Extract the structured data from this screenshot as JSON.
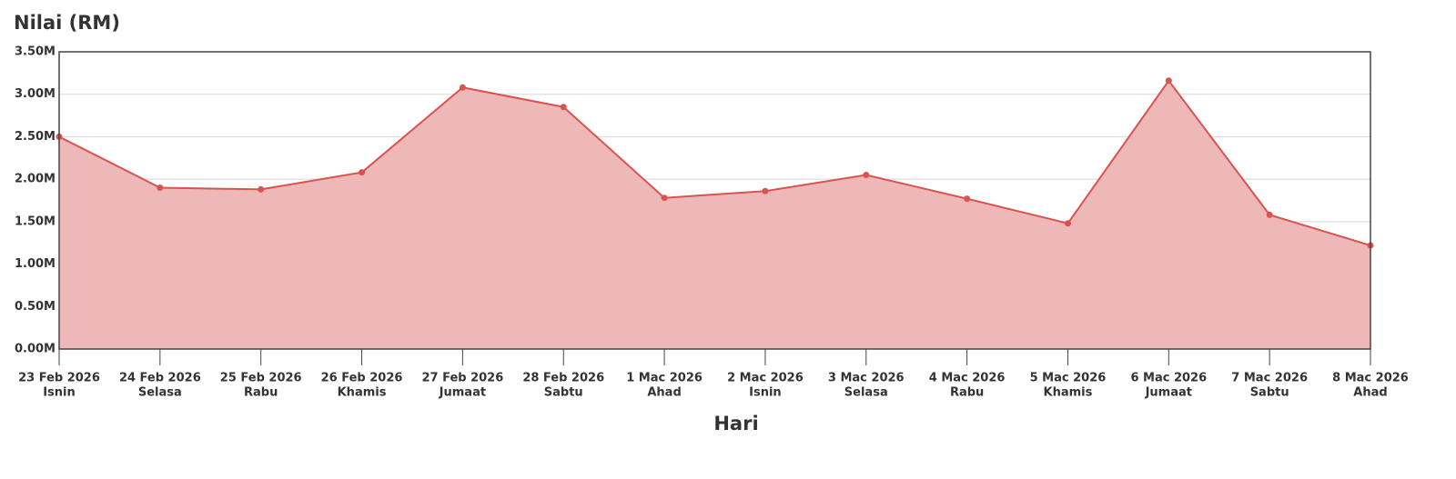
{
  "chart_data": {
    "type": "area",
    "title": "Nilai (RM)",
    "x_label": "Hari",
    "categories": [
      [
        "23 Feb 2026",
        "Isnin"
      ],
      [
        "24 Feb 2026",
        "Selasa"
      ],
      [
        "25 Feb 2026",
        "Rabu"
      ],
      [
        "26 Feb 2026",
        "Khamis"
      ],
      [
        "27 Feb 2026",
        "Jumaat"
      ],
      [
        "28 Feb 2026",
        "Sabtu"
      ],
      [
        "1 Mac 2026",
        "Ahad"
      ],
      [
        "2 Mac 2026",
        "Isnin"
      ],
      [
        "3 Mac 2026",
        "Selasa"
      ],
      [
        "4 Mac 2026",
        "Rabu"
      ],
      [
        "5 Mac 2026",
        "Khamis"
      ],
      [
        "6 Mac 2026",
        "Jumaat"
      ],
      [
        "7 Mac 2026",
        "Sabtu"
      ],
      [
        "8 Mac 2026",
        "Ahad"
      ]
    ],
    "values": [
      2500000,
      1900000,
      1880000,
      2080000,
      3080000,
      2850000,
      1780000,
      1860000,
      2050000,
      1770000,
      1480000,
      3160000,
      1580000,
      1220000
    ],
    "color": "#d9534f",
    "fill_color": "#efb8b8",
    "ylim": [
      0,
      3500000
    ],
    "yticks": [
      {
        "value": 0,
        "label": "0.00M"
      },
      {
        "value": 500000,
        "label": "0.50M"
      },
      {
        "value": 1000000,
        "label": "1.00M"
      },
      {
        "value": 1500000,
        "label": "1.50M"
      },
      {
        "value": 2000000,
        "label": "2.00M"
      },
      {
        "value": 2500000,
        "label": "2.50M"
      },
      {
        "value": 3000000,
        "label": "3.00M"
      },
      {
        "value": 3500000,
        "label": "3.50M"
      }
    ],
    "grid": true
  }
}
